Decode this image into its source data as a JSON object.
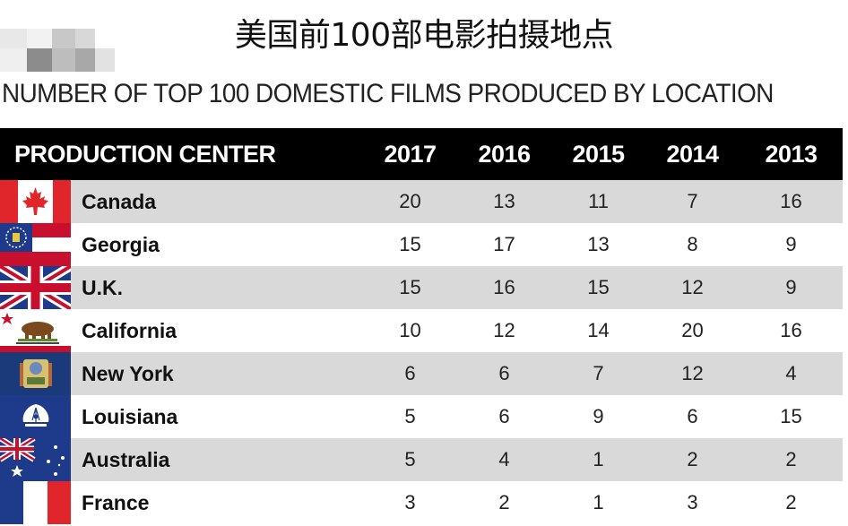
{
  "title": "美国前100部电影拍摄地点",
  "subtitle": "NUMBER OF TOP 100 DOMESTIC FILMS PRODUCED BY LOCATION",
  "chart_data": {
    "type": "table",
    "header": {
      "label": "PRODUCTION CENTER",
      "years": [
        "2017",
        "2016",
        "2015",
        "2014",
        "2013"
      ]
    },
    "rows": [
      {
        "name": "Canada",
        "flag": "canada-flag",
        "values": [
          20,
          13,
          11,
          7,
          16
        ]
      },
      {
        "name": "Georgia",
        "flag": "georgia-flag",
        "values": [
          15,
          17,
          13,
          8,
          9
        ]
      },
      {
        "name": "U.K.",
        "flag": "uk-flag",
        "values": [
          15,
          16,
          15,
          12,
          9
        ]
      },
      {
        "name": "California",
        "flag": "california-flag",
        "values": [
          10,
          12,
          14,
          20,
          16
        ]
      },
      {
        "name": "New York",
        "flag": "new-york-flag",
        "values": [
          6,
          6,
          7,
          12,
          4
        ]
      },
      {
        "name": "Louisiana",
        "flag": "louisiana-flag",
        "values": [
          5,
          6,
          9,
          6,
          15
        ]
      },
      {
        "name": "Australia",
        "flag": "australia-flag",
        "values": [
          5,
          4,
          1,
          2,
          2
        ]
      },
      {
        "name": "France",
        "flag": "france-flag",
        "values": [
          3,
          2,
          1,
          3,
          2
        ]
      }
    ]
  },
  "colors": {
    "header_bg": "#000000",
    "row_alt": "#d9d9d9",
    "row_plain": "#ffffff"
  }
}
